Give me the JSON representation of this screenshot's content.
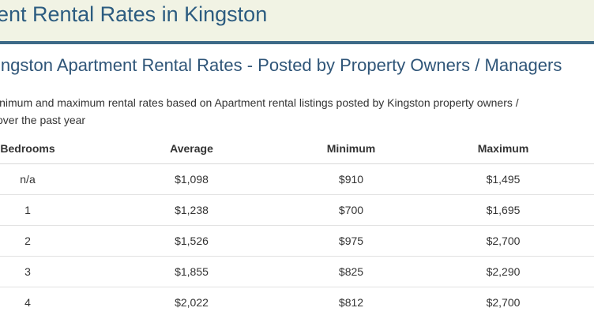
{
  "banner": {
    "title": "ent Rental Rates in Kingston"
  },
  "section": {
    "heading": "ingston Apartment Rental Rates - Posted by Property Owners / Managers",
    "description_line1": "inimum and maximum rental rates based on Apartment rental listings posted by Kingston property owners /",
    "description_line2": "over the past year"
  },
  "table": {
    "headers": {
      "bedrooms": "Bedrooms",
      "average": "Average",
      "minimum": "Minimum",
      "maximum": "Maximum"
    },
    "rows": [
      {
        "bedrooms": "n/a",
        "average": "$1,098",
        "minimum": "$910",
        "maximum": "$1,495"
      },
      {
        "bedrooms": "1",
        "average": "$1,238",
        "minimum": "$700",
        "maximum": "$1,695"
      },
      {
        "bedrooms": "2",
        "average": "$1,526",
        "minimum": "$975",
        "maximum": "$2,700"
      },
      {
        "bedrooms": "3",
        "average": "$1,855",
        "minimum": "$825",
        "maximum": "$2,290"
      },
      {
        "bedrooms": "4",
        "average": "$2,022",
        "minimum": "$812",
        "maximum": "$2,700"
      }
    ]
  },
  "colors": {
    "banner_background": "#f1f3e4",
    "banner_border": "#3d6a87",
    "title_text": "#2c5c80",
    "heading_text": "#2f5578"
  }
}
